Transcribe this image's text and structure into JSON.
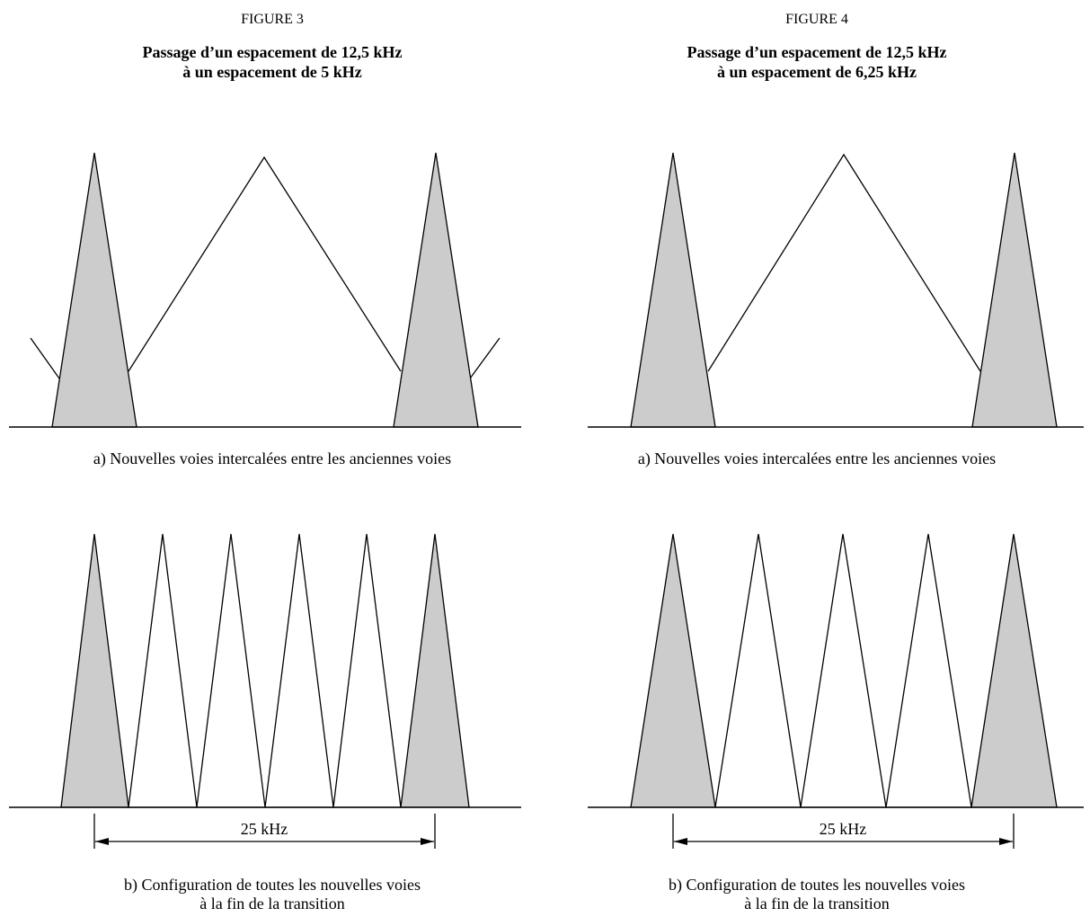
{
  "figures": [
    {
      "label": "FIGURE 3",
      "title_line1": "Passage d’un espacement de 12,5 kHz",
      "title_line2": "à un espacement de 5 kHz",
      "caption_a": "a)  Nouvelles voies intercalées entre les anciennes voies",
      "caption_b_line1": "b)  Configuration de toutes les nouvelles voies",
      "caption_b_line2": "à la fin de la transition",
      "dimension_label": "25 kHz"
    },
    {
      "label": "FIGURE 4",
      "title_line1": "Passage d’un espacement de 12,5 kHz",
      "title_line2": "à un espacement de 6,25 kHz",
      "caption_a": "a)  Nouvelles voies intercalées entre les anciennes voies",
      "caption_b_line1": "b)  Configuration de toutes les nouvelles voies",
      "caption_b_line2": "à la fin de la transition",
      "dimension_label": "25 kHz"
    }
  ],
  "colors": {
    "channel_fill": "#cccccc",
    "line": "#000000"
  }
}
